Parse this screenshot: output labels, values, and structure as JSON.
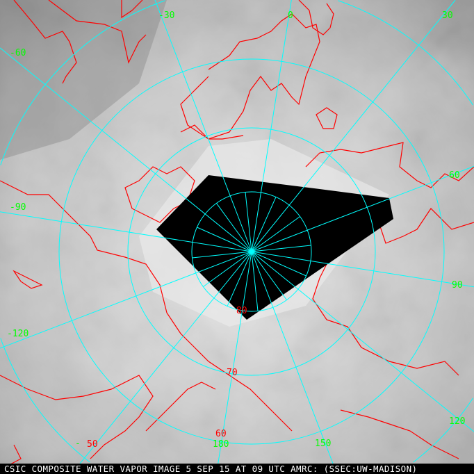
{
  "caption": "CSIC COMPOSITE WATER VAPOR IMAGE 5 SEP 15 AT 09 UTC AMRC: (SSEC:UW-MADISON)",
  "colors": {
    "grid": "#00ffff",
    "coast": "#ff0000",
    "longitude_labels": "#00ff00",
    "latitude_labels": "#ff0000",
    "no_data": "#000000"
  },
  "projection": "north polar stereographic",
  "longitude_labels": [
    "-30",
    "0",
    "30",
    "-60",
    "60",
    "-90",
    "90",
    "-120",
    "120",
    "180",
    "150",
    "-"
  ],
  "latitude_labels": [
    "80",
    "70",
    "60",
    "50"
  ]
}
